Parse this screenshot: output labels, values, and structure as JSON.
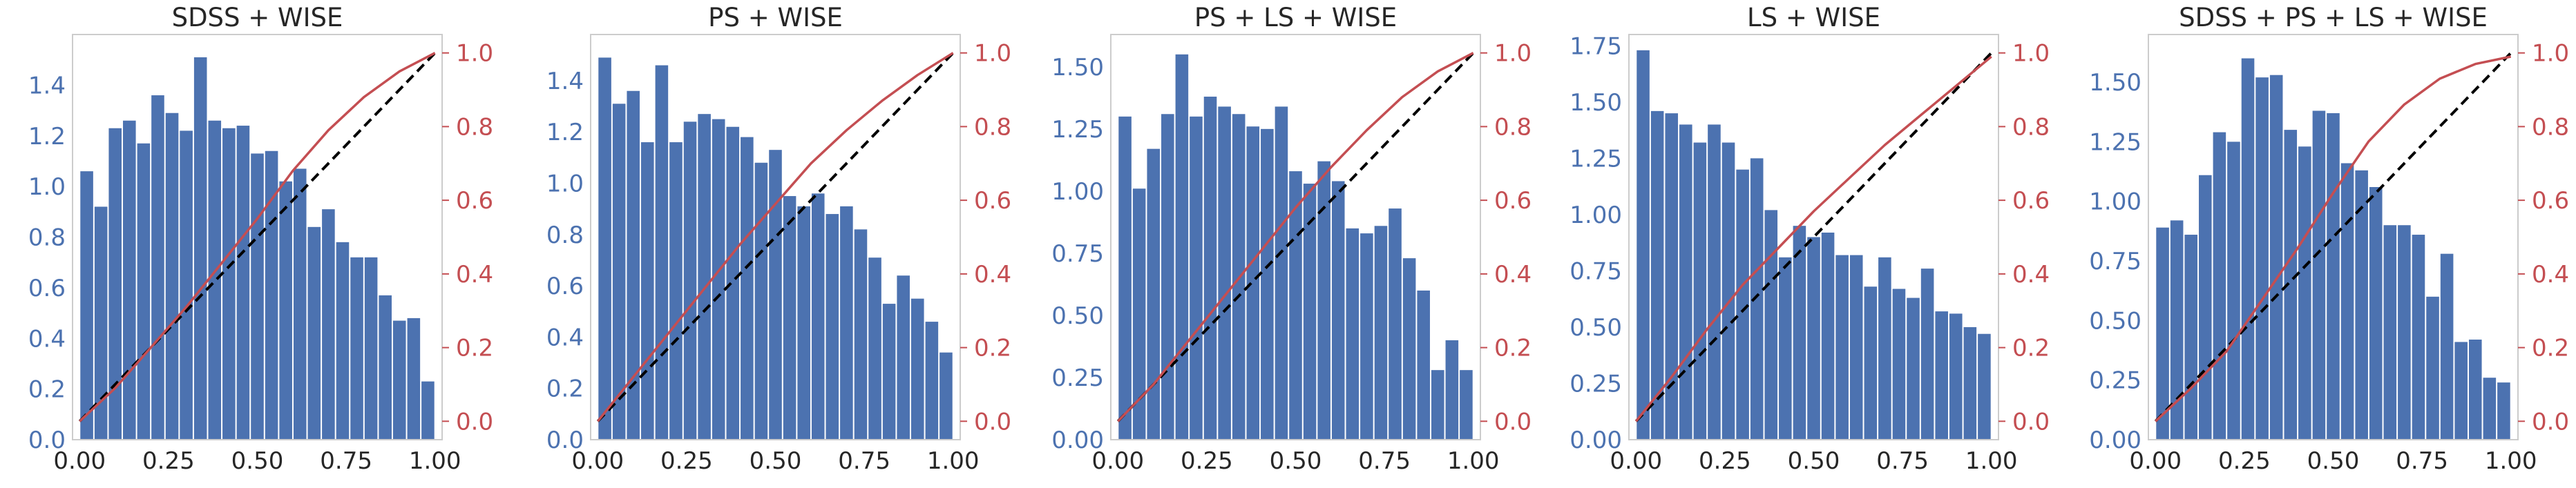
{
  "figure": {
    "bar_color": "#4c72b0",
    "cdf_color": "#c44e52",
    "diagonal_color": "#000000",
    "spine_color": "#cccccc"
  },
  "chart_data": [
    {
      "type": "bar",
      "title": "SDSS + WISE",
      "xlim": [
        -0.02,
        1.02
      ],
      "ylim": [
        0,
        1.6
      ],
      "y2lim": [
        -0.05,
        1.05
      ],
      "xticks": [
        "0.00",
        "0.25",
        "0.50",
        "0.75",
        "1.00"
      ],
      "xtick_values": [
        0,
        0.25,
        0.5,
        0.75,
        1.0
      ],
      "yticks": [
        "0.0",
        "0.2",
        "0.4",
        "0.6",
        "0.8",
        "1.0",
        "1.2",
        "1.4"
      ],
      "ytick_values": [
        0,
        0.2,
        0.4,
        0.6,
        0.8,
        1.0,
        1.2,
        1.4
      ],
      "y2ticks": [
        "0.0",
        "0.2",
        "0.4",
        "0.6",
        "0.8",
        "1.0"
      ],
      "y2tick_values": [
        0,
        0.2,
        0.4,
        0.6,
        0.8,
        1.0
      ],
      "bin_width": 0.04,
      "values": [
        1.06,
        0.92,
        1.23,
        1.26,
        1.17,
        1.36,
        1.29,
        1.22,
        1.51,
        1.26,
        1.23,
        1.24,
        1.13,
        1.14,
        1.02,
        1.07,
        0.84,
        0.91,
        0.78,
        0.72,
        0.72,
        0.57,
        0.47,
        0.48,
        0.23
      ],
      "cdf": [
        [
          0,
          0
        ],
        [
          0.1,
          0.09
        ],
        [
          0.2,
          0.2
        ],
        [
          0.3,
          0.31
        ],
        [
          0.4,
          0.43
        ],
        [
          0.5,
          0.55
        ],
        [
          0.6,
          0.68
        ],
        [
          0.7,
          0.79
        ],
        [
          0.8,
          0.88
        ],
        [
          0.9,
          0.95
        ],
        [
          1.0,
          1.0
        ]
      ]
    },
    {
      "type": "bar",
      "title": "PS + WISE",
      "xlim": [
        -0.02,
        1.02
      ],
      "ylim": [
        0,
        1.58
      ],
      "y2lim": [
        -0.05,
        1.05
      ],
      "xticks": [
        "0.00",
        "0.25",
        "0.50",
        "0.75",
        "1.00"
      ],
      "xtick_values": [
        0,
        0.25,
        0.5,
        0.75,
        1.0
      ],
      "yticks": [
        "0.0",
        "0.2",
        "0.4",
        "0.6",
        "0.8",
        "1.0",
        "1.2",
        "1.4"
      ],
      "ytick_values": [
        0,
        0.2,
        0.4,
        0.6,
        0.8,
        1.0,
        1.2,
        1.4
      ],
      "y2ticks": [
        "0.0",
        "0.2",
        "0.4",
        "0.6",
        "0.8",
        "1.0"
      ],
      "y2tick_values": [
        0,
        0.2,
        0.4,
        0.6,
        0.8,
        1.0
      ],
      "bin_width": 0.04,
      "values": [
        1.49,
        1.31,
        1.36,
        1.16,
        1.46,
        1.16,
        1.24,
        1.27,
        1.25,
        1.22,
        1.18,
        1.08,
        1.13,
        0.95,
        0.91,
        0.96,
        0.88,
        0.91,
        0.82,
        0.71,
        0.53,
        0.64,
        0.55,
        0.46,
        0.34
      ],
      "cdf": [
        [
          0,
          0
        ],
        [
          0.1,
          0.12
        ],
        [
          0.2,
          0.24
        ],
        [
          0.3,
          0.36
        ],
        [
          0.4,
          0.48
        ],
        [
          0.5,
          0.59
        ],
        [
          0.6,
          0.7
        ],
        [
          0.7,
          0.79
        ],
        [
          0.8,
          0.87
        ],
        [
          0.9,
          0.94
        ],
        [
          1.0,
          1.0
        ]
      ]
    },
    {
      "type": "bar",
      "title": "PS + LS + WISE",
      "xlim": [
        -0.02,
        1.02
      ],
      "ylim": [
        0,
        1.63
      ],
      "y2lim": [
        -0.05,
        1.05
      ],
      "xticks": [
        "0.00",
        "0.25",
        "0.50",
        "0.75",
        "1.00"
      ],
      "xtick_values": [
        0,
        0.25,
        0.5,
        0.75,
        1.0
      ],
      "yticks": [
        "0.00",
        "0.25",
        "0.50",
        "0.75",
        "1.00",
        "1.25",
        "1.50"
      ],
      "ytick_values": [
        0,
        0.25,
        0.5,
        0.75,
        1.0,
        1.25,
        1.5
      ],
      "y2ticks": [
        "0.0",
        "0.2",
        "0.4",
        "0.6",
        "0.8",
        "1.0"
      ],
      "y2tick_values": [
        0,
        0.2,
        0.4,
        0.6,
        0.8,
        1.0
      ],
      "bin_width": 0.04,
      "values": [
        1.3,
        1.01,
        1.17,
        1.31,
        1.55,
        1.3,
        1.38,
        1.34,
        1.31,
        1.26,
        1.25,
        1.34,
        1.08,
        1.03,
        1.12,
        1.04,
        0.85,
        0.83,
        0.86,
        0.93,
        0.73,
        0.6,
        0.28,
        0.4,
        0.28
      ],
      "cdf": [
        [
          0,
          0
        ],
        [
          0.1,
          0.1
        ],
        [
          0.2,
          0.22
        ],
        [
          0.3,
          0.34
        ],
        [
          0.4,
          0.46
        ],
        [
          0.5,
          0.58
        ],
        [
          0.6,
          0.69
        ],
        [
          0.7,
          0.79
        ],
        [
          0.8,
          0.88
        ],
        [
          0.9,
          0.95
        ],
        [
          1.0,
          1.0
        ]
      ]
    },
    {
      "type": "bar",
      "title": "LS + WISE",
      "xlim": [
        -0.02,
        1.02
      ],
      "ylim": [
        0,
        1.8
      ],
      "y2lim": [
        -0.05,
        1.05
      ],
      "xticks": [
        "0.00",
        "0.25",
        "0.50",
        "0.75",
        "1.00"
      ],
      "xtick_values": [
        0,
        0.25,
        0.5,
        0.75,
        1.0
      ],
      "yticks": [
        "0.00",
        "0.25",
        "0.50",
        "0.75",
        "1.00",
        "1.25",
        "1.50",
        "1.75"
      ],
      "ytick_values": [
        0,
        0.25,
        0.5,
        0.75,
        1.0,
        1.25,
        1.5,
        1.75
      ],
      "y2ticks": [
        "0.0",
        "0.2",
        "0.4",
        "0.6",
        "0.8",
        "1.0"
      ],
      "y2tick_values": [
        0,
        0.2,
        0.4,
        0.6,
        0.8,
        1.0
      ],
      "bin_width": 0.04,
      "values": [
        1.73,
        1.46,
        1.45,
        1.4,
        1.32,
        1.4,
        1.32,
        1.2,
        1.25,
        1.02,
        0.81,
        0.95,
        0.9,
        0.92,
        0.82,
        0.82,
        0.68,
        0.81,
        0.67,
        0.63,
        0.76,
        0.57,
        0.56,
        0.5,
        0.47
      ],
      "cdf": [
        [
          0,
          0
        ],
        [
          0.1,
          0.12
        ],
        [
          0.2,
          0.25
        ],
        [
          0.3,
          0.37
        ],
        [
          0.4,
          0.47
        ],
        [
          0.5,
          0.57
        ],
        [
          0.6,
          0.66
        ],
        [
          0.7,
          0.75
        ],
        [
          0.8,
          0.83
        ],
        [
          0.9,
          0.91
        ],
        [
          1.0,
          0.99
        ]
      ]
    },
    {
      "type": "bar",
      "title": "SDSS + PS + LS + WISE",
      "xlim": [
        -0.02,
        1.02
      ],
      "ylim": [
        0,
        1.7
      ],
      "y2lim": [
        -0.05,
        1.05
      ],
      "xticks": [
        "0.00",
        "0.25",
        "0.50",
        "0.75",
        "1.00"
      ],
      "xtick_values": [
        0,
        0.25,
        0.5,
        0.75,
        1.0
      ],
      "yticks": [
        "0.00",
        "0.25",
        "0.50",
        "0.75",
        "1.00",
        "1.25",
        "1.50"
      ],
      "ytick_values": [
        0,
        0.25,
        0.5,
        0.75,
        1.0,
        1.25,
        1.5
      ],
      "y2ticks": [
        "0.0",
        "0.2",
        "0.4",
        "0.6",
        "0.8",
        "1.0"
      ],
      "y2tick_values": [
        0,
        0.2,
        0.4,
        0.6,
        0.8,
        1.0
      ],
      "bin_width": 0.04,
      "values": [
        0.89,
        0.92,
        0.86,
        1.11,
        1.29,
        1.25,
        1.6,
        1.52,
        1.53,
        1.3,
        1.23,
        1.38,
        1.37,
        1.16,
        1.13,
        1.06,
        0.9,
        0.9,
        0.86,
        0.6,
        0.78,
        0.41,
        0.42,
        0.26,
        0.24
      ],
      "cdf": [
        [
          0,
          0
        ],
        [
          0.1,
          0.09
        ],
        [
          0.2,
          0.19
        ],
        [
          0.3,
          0.33
        ],
        [
          0.4,
          0.47
        ],
        [
          0.5,
          0.62
        ],
        [
          0.6,
          0.76
        ],
        [
          0.7,
          0.86
        ],
        [
          0.8,
          0.93
        ],
        [
          0.9,
          0.97
        ],
        [
          1.0,
          0.99
        ]
      ]
    }
  ]
}
